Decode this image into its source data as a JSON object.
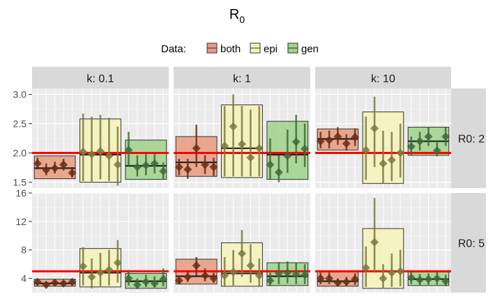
{
  "chart_data": {
    "type": "faceted box plot with points and error bars",
    "title": "R",
    "title_subscript": "0",
    "legend": {
      "title": "Data:",
      "position": "top",
      "entries": [
        {
          "label": "both",
          "color": "#E79A7F"
        },
        {
          "label": "epi",
          "color": "#F5F3B8"
        },
        {
          "label": "gen",
          "color": "#9FD28B"
        }
      ]
    },
    "col_facets": [
      "k: 0.1",
      "k: 1",
      "k: 10"
    ],
    "row_facets": [
      "R0: 2",
      "R0: 5"
    ],
    "true_values": [
      2,
      5
    ],
    "reference_line_color": "#FF0000",
    "row_y_ranges": [
      [
        1.4,
        3.1
      ],
      [
        2.0,
        16.0
      ]
    ],
    "row_y_ticks": [
      [
        1.5,
        2.0,
        2.5,
        3.0
      ],
      [
        4,
        8,
        12,
        16
      ]
    ],
    "row_y_tick_labels": [
      [
        "1.5",
        "2.0",
        "2.5",
        "3.0"
      ],
      [
        "4",
        "8",
        "12",
        "16"
      ]
    ],
    "grid": true,
    "panel_background": "#EBEBEB",
    "strip_background": "#D9D9D9",
    "point_colors": {
      "both": "#6B2E14",
      "epi": "#7A7A40",
      "gen": "#3E6B3A"
    },
    "panels": [
      {
        "row": 0,
        "col": 0,
        "groups": [
          {
            "series": "both",
            "box": [
              1.56,
              1.74,
              1.95
            ],
            "points": [
              {
                "y": 1.82,
                "lo": 1.72,
                "hi": 1.92
              },
              {
                "y": 1.71,
                "lo": 1.62,
                "hi": 1.82
              },
              {
                "y": 1.74,
                "lo": 1.65,
                "hi": 1.85
              },
              {
                "y": 1.8,
                "lo": 1.7,
                "hi": 1.9
              },
              {
                "y": 1.66,
                "lo": 1.58,
                "hi": 1.76
              }
            ]
          },
          {
            "series": "epi",
            "box": [
              1.5,
              1.97,
              2.58
            ],
            "points": [
              {
                "y": 2.02,
                "lo": 1.52,
                "hi": 2.67
              },
              {
                "y": 1.98,
                "lo": 1.5,
                "hi": 2.62
              },
              {
                "y": 2.03,
                "lo": 1.55,
                "hi": 2.65
              },
              {
                "y": 1.95,
                "lo": 1.52,
                "hi": 2.6
              },
              {
                "y": 1.8,
                "lo": 1.44,
                "hi": 2.45
              }
            ]
          },
          {
            "series": "gen",
            "box": [
              1.55,
              1.78,
              2.22
            ],
            "points": [
              {
                "y": 2.05,
                "lo": 1.78,
                "hi": 2.36
              },
              {
                "y": 1.76,
                "lo": 1.6,
                "hi": 1.96
              },
              {
                "y": 1.79,
                "lo": 1.62,
                "hi": 1.98
              },
              {
                "y": 1.82,
                "lo": 1.65,
                "hi": 2.0
              },
              {
                "y": 1.69,
                "lo": 1.55,
                "hi": 1.84
              }
            ]
          }
        ]
      },
      {
        "row": 0,
        "col": 1,
        "groups": [
          {
            "series": "both",
            "box": [
              1.6,
              1.84,
              2.28
            ],
            "points": [
              {
                "y": 1.76,
                "lo": 1.62,
                "hi": 1.9
              },
              {
                "y": 1.72,
                "lo": 1.56,
                "hi": 1.9
              },
              {
                "y": 2.08,
                "lo": 1.76,
                "hi": 2.48
              },
              {
                "y": 1.8,
                "lo": 1.64,
                "hi": 1.96
              },
              {
                "y": 1.76,
                "lo": 1.6,
                "hi": 1.92
              }
            ]
          },
          {
            "series": "epi",
            "box": [
              1.58,
              2.08,
              2.82
            ],
            "points": [
              {
                "y": 2.12,
                "lo": 1.6,
                "hi": 2.8
              },
              {
                "y": 2.45,
                "lo": 1.6,
                "hi": 3.0
              },
              {
                "y": 2.15,
                "lo": 1.6,
                "hi": 2.8
              },
              {
                "y": 1.92,
                "lo": 1.6,
                "hi": 2.74
              },
              {
                "y": 2.08,
                "lo": 1.6,
                "hi": 2.8
              }
            ]
          },
          {
            "series": "gen",
            "box": [
              1.55,
              1.97,
              2.54
            ],
            "points": [
              {
                "y": 1.8,
                "lo": 1.55,
                "hi": 2.25
              },
              {
                "y": 1.67,
                "lo": 1.5,
                "hi": 1.96
              },
              {
                "y": 1.95,
                "lo": 1.66,
                "hi": 2.4
              },
              {
                "y": 2.19,
                "lo": 1.82,
                "hi": 2.65
              },
              {
                "y": 2.07,
                "lo": 1.76,
                "hi": 2.5
              }
            ]
          }
        ]
      },
      {
        "row": 0,
        "col": 2,
        "groups": [
          {
            "series": "both",
            "box": [
              2.05,
              2.24,
              2.41
            ],
            "points": [
              {
                "y": 2.2,
                "lo": 2.08,
                "hi": 2.36
              },
              {
                "y": 2.22,
                "lo": 2.08,
                "hi": 2.38
              },
              {
                "y": 2.28,
                "lo": 2.14,
                "hi": 2.44
              },
              {
                "y": 2.16,
                "lo": 2.04,
                "hi": 2.32
              },
              {
                "y": 2.27,
                "lo": 2.12,
                "hi": 2.42
              }
            ]
          },
          {
            "series": "epi",
            "box": [
              1.48,
              2.0,
              2.7
            ],
            "points": [
              {
                "y": 2.05,
                "lo": 1.54,
                "hi": 2.62
              },
              {
                "y": 2.42,
                "lo": 1.76,
                "hi": 2.96
              },
              {
                "y": 1.82,
                "lo": 1.48,
                "hi": 2.38
              },
              {
                "y": 1.88,
                "lo": 1.52,
                "hi": 2.36
              },
              {
                "y": 2.0,
                "lo": 1.58,
                "hi": 2.5
              }
            ]
          },
          {
            "series": "gen",
            "box": [
              1.96,
              2.2,
              2.44
            ],
            "points": [
              {
                "y": 2.11,
                "lo": 1.96,
                "hi": 2.28
              },
              {
                "y": 2.2,
                "lo": 2.04,
                "hi": 2.36
              },
              {
                "y": 2.28,
                "lo": 2.12,
                "hi": 2.44
              },
              {
                "y": 2.04,
                "lo": 1.94,
                "hi": 2.18
              },
              {
                "y": 2.28,
                "lo": 2.12,
                "hi": 2.44
              }
            ]
          }
        ]
      },
      {
        "row": 1,
        "col": 0,
        "groups": [
          {
            "series": "both",
            "box": [
              2.9,
              3.3,
              3.9
            ],
            "points": [
              {
                "y": 3.5,
                "lo": 3.0,
                "hi": 3.9
              },
              {
                "y": 3.1,
                "lo": 2.8,
                "hi": 3.5
              },
              {
                "y": 3.4,
                "lo": 3.0,
                "hi": 3.8
              },
              {
                "y": 3.3,
                "lo": 2.9,
                "hi": 3.7
              },
              {
                "y": 3.5,
                "lo": 3.0,
                "hi": 3.9
              }
            ]
          },
          {
            "series": "epi",
            "box": [
              2.8,
              4.8,
              8.2
            ],
            "points": [
              {
                "y": 5.7,
                "lo": 3.0,
                "hi": 8.4
              },
              {
                "y": 4.2,
                "lo": 2.6,
                "hi": 6.8
              },
              {
                "y": 4.8,
                "lo": 2.9,
                "hi": 7.6
              },
              {
                "y": 5.2,
                "lo": 3.0,
                "hi": 8.0
              },
              {
                "y": 6.2,
                "lo": 3.4,
                "hi": 9.4
              }
            ]
          },
          {
            "series": "gen",
            "box": [
              2.6,
              3.6,
              4.7
            ],
            "points": [
              {
                "y": 4.0,
                "lo": 3.0,
                "hi": 5.2
              },
              {
                "y": 3.1,
                "lo": 2.5,
                "hi": 4.0
              },
              {
                "y": 3.5,
                "lo": 2.8,
                "hi": 4.5
              },
              {
                "y": 3.3,
                "lo": 2.7,
                "hi": 4.3
              },
              {
                "y": 3.9,
                "lo": 2.9,
                "hi": 5.4
              }
            ]
          }
        ]
      },
      {
        "row": 1,
        "col": 1,
        "groups": [
          {
            "series": "both",
            "box": [
              3.2,
              4.3,
              6.7
            ],
            "points": [
              {
                "y": 3.7,
                "lo": 3.2,
                "hi": 4.4
              },
              {
                "y": 4.2,
                "lo": 3.5,
                "hi": 5.0
              },
              {
                "y": 5.8,
                "lo": 4.4,
                "hi": 7.0
              },
              {
                "y": 4.4,
                "lo": 3.6,
                "hi": 5.4
              },
              {
                "y": 4.0,
                "lo": 3.4,
                "hi": 4.8
              }
            ]
          },
          {
            "series": "epi",
            "box": [
              2.9,
              4.7,
              9.0
            ],
            "points": [
              {
                "y": 4.4,
                "lo": 2.8,
                "hi": 7.0
              },
              {
                "y": 4.9,
                "lo": 3.0,
                "hi": 8.0
              },
              {
                "y": 7.5,
                "lo": 4.2,
                "hi": 10.8
              },
              {
                "y": 5.8,
                "lo": 3.4,
                "hi": 8.8
              },
              {
                "y": 4.4,
                "lo": 2.9,
                "hi": 6.8
              }
            ]
          },
          {
            "series": "gen",
            "box": [
              3.0,
              4.3,
              6.2
            ],
            "points": [
              {
                "y": 3.7,
                "lo": 2.9,
                "hi": 4.8
              },
              {
                "y": 4.7,
                "lo": 3.2,
                "hi": 6.3
              },
              {
                "y": 4.8,
                "lo": 3.3,
                "hi": 6.4
              },
              {
                "y": 4.6,
                "lo": 3.2,
                "hi": 6.2
              },
              {
                "y": 4.5,
                "lo": 3.2,
                "hi": 6.0
              }
            ]
          }
        ]
      },
      {
        "row": 1,
        "col": 2,
        "groups": [
          {
            "series": "both",
            "box": [
              2.9,
              3.6,
              4.9
            ],
            "points": [
              {
                "y": 4.0,
                "lo": 3.2,
                "hi": 4.8
              },
              {
                "y": 4.0,
                "lo": 3.2,
                "hi": 4.8
              },
              {
                "y": 3.4,
                "lo": 2.9,
                "hi": 4.0
              },
              {
                "y": 3.5,
                "lo": 2.9,
                "hi": 4.2
              },
              {
                "y": 3.9,
                "lo": 3.1,
                "hi": 4.7
              }
            ]
          },
          {
            "series": "epi",
            "box": [
              2.6,
              5.0,
              11.0
            ],
            "points": [
              {
                "y": 5.5,
                "lo": 2.8,
                "hi": 8.5
              },
              {
                "y": 9.1,
                "lo": 4.8,
                "hi": 15.3
              },
              {
                "y": 4.0,
                "lo": 2.6,
                "hi": 6.0
              },
              {
                "y": 4.8,
                "lo": 2.8,
                "hi": 7.5
              },
              {
                "y": 5.0,
                "lo": 2.9,
                "hi": 8.0
              }
            ]
          },
          {
            "series": "gen",
            "box": [
              3.0,
              3.9,
              4.9
            ],
            "points": [
              {
                "y": 4.1,
                "lo": 3.2,
                "hi": 4.9
              },
              {
                "y": 3.8,
                "lo": 3.0,
                "hi": 4.6
              },
              {
                "y": 3.9,
                "lo": 3.1,
                "hi": 4.7
              },
              {
                "y": 4.0,
                "lo": 3.1,
                "hi": 4.9
              },
              {
                "y": 3.6,
                "lo": 2.9,
                "hi": 4.5
              }
            ]
          }
        ]
      }
    ]
  }
}
